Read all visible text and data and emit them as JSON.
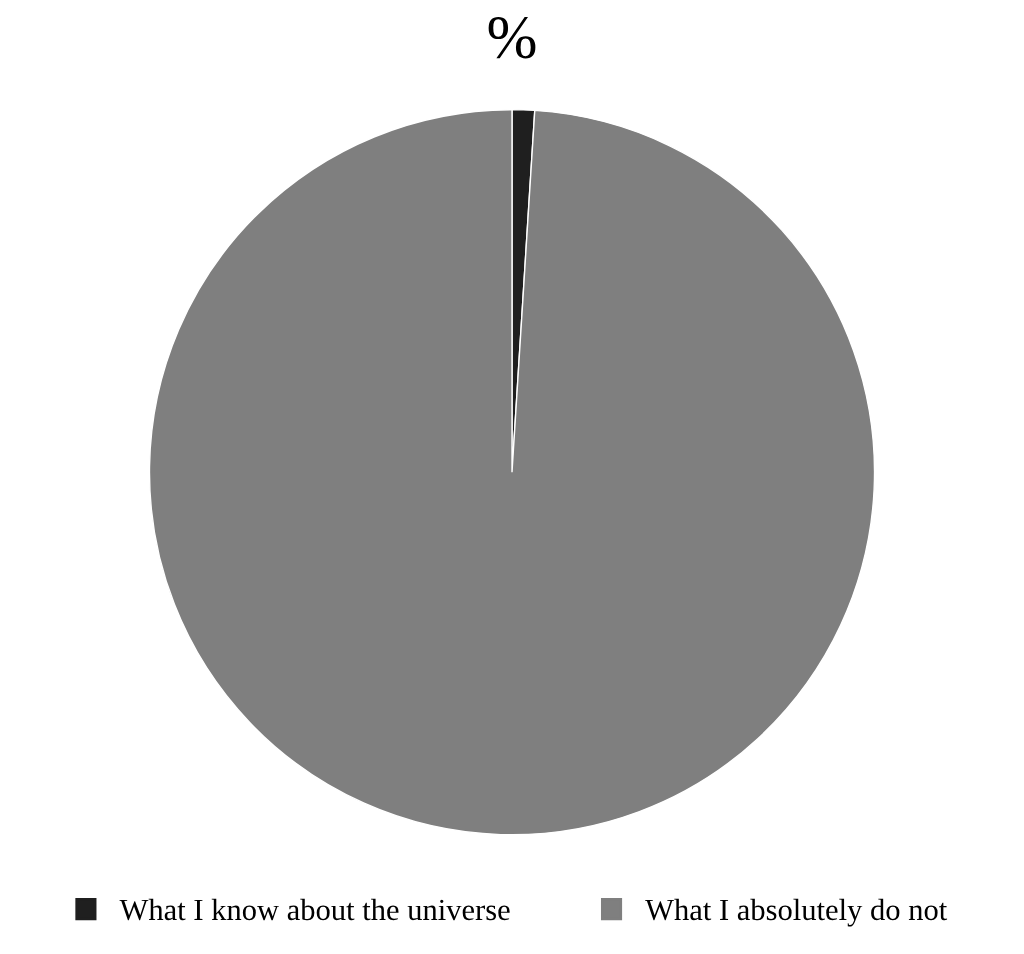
{
  "chart_data": {
    "type": "pie",
    "title": "%",
    "categories": [
      "What I know about the universe",
      "What I absolutely do not"
    ],
    "values": [
      1,
      99
    ],
    "colors": [
      "#1f1f1f",
      "#7f7f7f"
    ],
    "legend": "bottom"
  }
}
